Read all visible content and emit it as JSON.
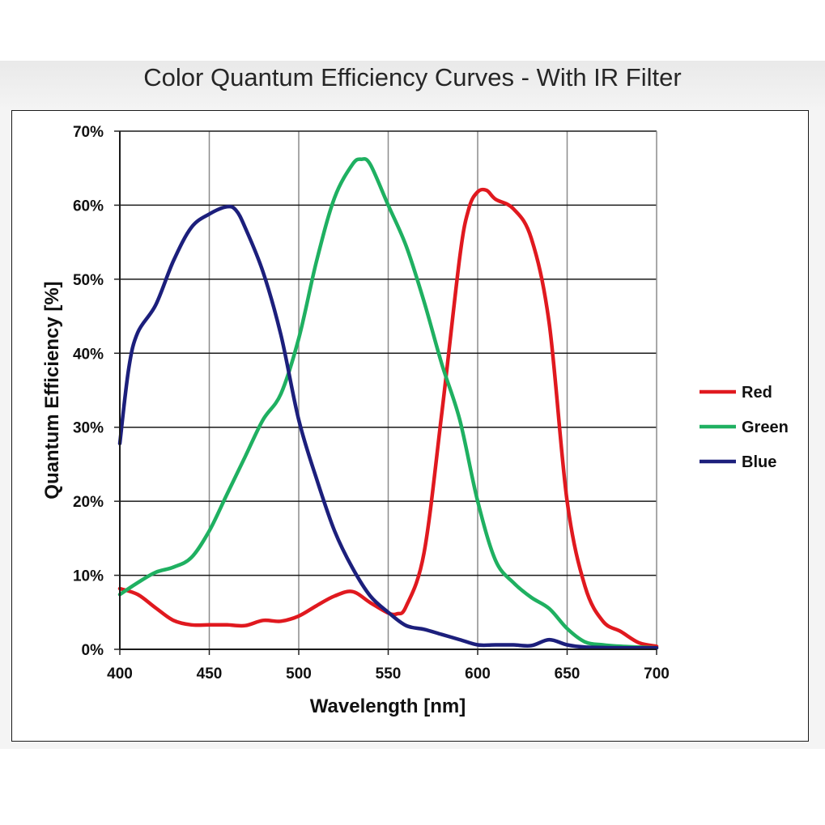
{
  "chart_data": {
    "type": "line",
    "title": "Color Quantum Efficiency Curves - With IR Filter",
    "xlabel": "Wavelength [nm]",
    "ylabel": "Quantum Efficiency [%]",
    "xlim": [
      400,
      700
    ],
    "ylim": [
      0,
      70
    ],
    "x_ticks": [
      400,
      450,
      500,
      550,
      600,
      650,
      700
    ],
    "y_ticks": [
      0,
      10,
      20,
      30,
      40,
      50,
      60,
      70
    ],
    "y_tick_format": "percent",
    "grid": true,
    "legend_position": "right",
    "series": [
      {
        "name": "Red",
        "color": "#e0191f",
        "points": [
          [
            400,
            8.2
          ],
          [
            410,
            7.4
          ],
          [
            420,
            5.6
          ],
          [
            430,
            3.9
          ],
          [
            440,
            3.3
          ],
          [
            450,
            3.3
          ],
          [
            460,
            3.3
          ],
          [
            470,
            3.2
          ],
          [
            480,
            3.9
          ],
          [
            490,
            3.8
          ],
          [
            500,
            4.5
          ],
          [
            510,
            5.9
          ],
          [
            520,
            7.2
          ],
          [
            530,
            7.8
          ],
          [
            540,
            6.3
          ],
          [
            550,
            4.9
          ],
          [
            555,
            4.8
          ],
          [
            560,
            5.8
          ],
          [
            570,
            13.0
          ],
          [
            580,
            32.0
          ],
          [
            590,
            53.0
          ],
          [
            595,
            59.5
          ],
          [
            600,
            61.8
          ],
          [
            605,
            62.0
          ],
          [
            610,
            60.8
          ],
          [
            620,
            59.5
          ],
          [
            630,
            55.5
          ],
          [
            640,
            44.0
          ],
          [
            650,
            20.0
          ],
          [
            660,
            8.5
          ],
          [
            670,
            3.8
          ],
          [
            680,
            2.4
          ],
          [
            690,
            0.9
          ],
          [
            700,
            0.4
          ]
        ]
      },
      {
        "name": "Green",
        "color": "#1fb061",
        "points": [
          [
            400,
            7.4
          ],
          [
            410,
            9.0
          ],
          [
            420,
            10.4
          ],
          [
            430,
            11.1
          ],
          [
            440,
            12.4
          ],
          [
            450,
            16.0
          ],
          [
            460,
            21.0
          ],
          [
            470,
            26.0
          ],
          [
            480,
            31.0
          ],
          [
            490,
            34.5
          ],
          [
            500,
            42.0
          ],
          [
            510,
            52.5
          ],
          [
            520,
            61.0
          ],
          [
            530,
            65.5
          ],
          [
            535,
            66.2
          ],
          [
            540,
            65.5
          ],
          [
            550,
            60.0
          ],
          [
            560,
            54.5
          ],
          [
            570,
            47.0
          ],
          [
            580,
            38.5
          ],
          [
            590,
            31.0
          ],
          [
            600,
            20.0
          ],
          [
            610,
            12.0
          ],
          [
            620,
            9.0
          ],
          [
            630,
            7.0
          ],
          [
            640,
            5.5
          ],
          [
            650,
            2.8
          ],
          [
            660,
            1.0
          ],
          [
            670,
            0.6
          ],
          [
            680,
            0.4
          ],
          [
            690,
            0.3
          ],
          [
            700,
            0.2
          ]
        ]
      },
      {
        "name": "Blue",
        "color": "#1c1f7c",
        "points": [
          [
            400,
            27.8
          ],
          [
            405,
            38.0
          ],
          [
            410,
            42.8
          ],
          [
            420,
            46.5
          ],
          [
            430,
            52.5
          ],
          [
            440,
            57.0
          ],
          [
            450,
            58.8
          ],
          [
            460,
            59.8
          ],
          [
            465,
            59.3
          ],
          [
            470,
            57.0
          ],
          [
            480,
            51.0
          ],
          [
            490,
            42.5
          ],
          [
            500,
            31.0
          ],
          [
            510,
            23.0
          ],
          [
            520,
            16.0
          ],
          [
            530,
            11.0
          ],
          [
            540,
            7.2
          ],
          [
            550,
            5.0
          ],
          [
            560,
            3.2
          ],
          [
            570,
            2.7
          ],
          [
            580,
            2.0
          ],
          [
            590,
            1.3
          ],
          [
            600,
            0.6
          ],
          [
            610,
            0.6
          ],
          [
            620,
            0.6
          ],
          [
            630,
            0.5
          ],
          [
            640,
            1.3
          ],
          [
            650,
            0.6
          ],
          [
            660,
            0.3
          ],
          [
            680,
            0.2
          ],
          [
            700,
            0.2
          ]
        ]
      }
    ]
  }
}
